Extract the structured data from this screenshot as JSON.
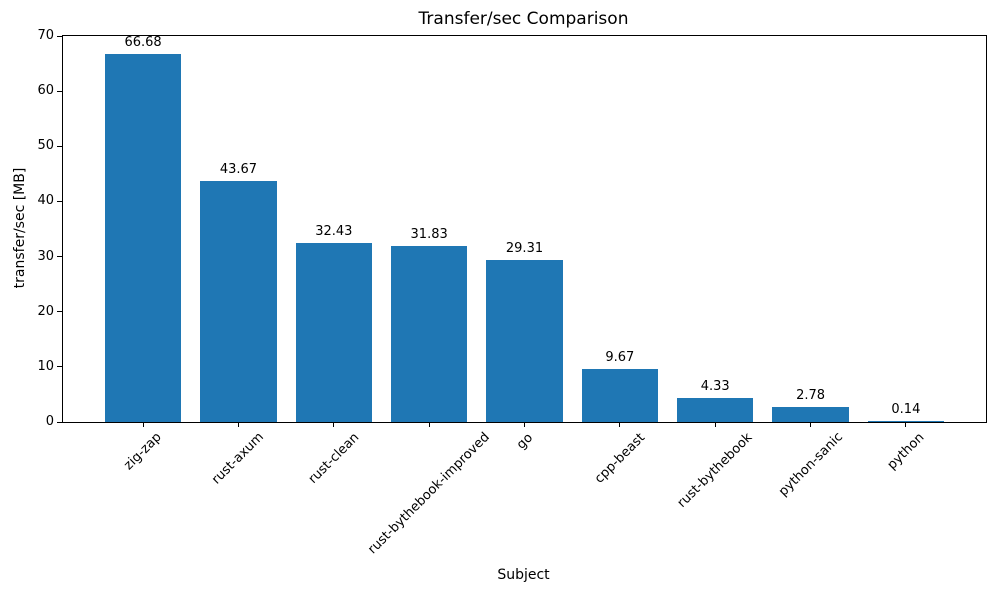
{
  "chart_data": {
    "type": "bar",
    "title": "Transfer/sec Comparison",
    "xlabel": "Subject",
    "ylabel": "transfer/sec [MB]",
    "categories": [
      "zig-zap",
      "rust-axum",
      "rust-clean",
      "rust-bythebook-improved",
      "go",
      "cpp-beast",
      "rust-bythebook",
      "python-sanic",
      "python"
    ],
    "values": [
      66.68,
      43.67,
      32.43,
      31.83,
      29.31,
      9.67,
      4.33,
      2.78,
      0.14
    ],
    "value_labels": [
      "66.68",
      "43.67",
      "32.43",
      "31.83",
      "29.31",
      "9.67",
      "4.33",
      "2.78",
      "0.14"
    ],
    "ylim": [
      0,
      70
    ],
    "yticks": [
      0,
      10,
      20,
      30,
      40,
      50,
      60,
      70
    ],
    "bar_color": "#1f77b4",
    "axis_color": "#000000",
    "grid": false,
    "bar_label_position": "above-bar",
    "x_tick_rotation_deg": 45
  }
}
